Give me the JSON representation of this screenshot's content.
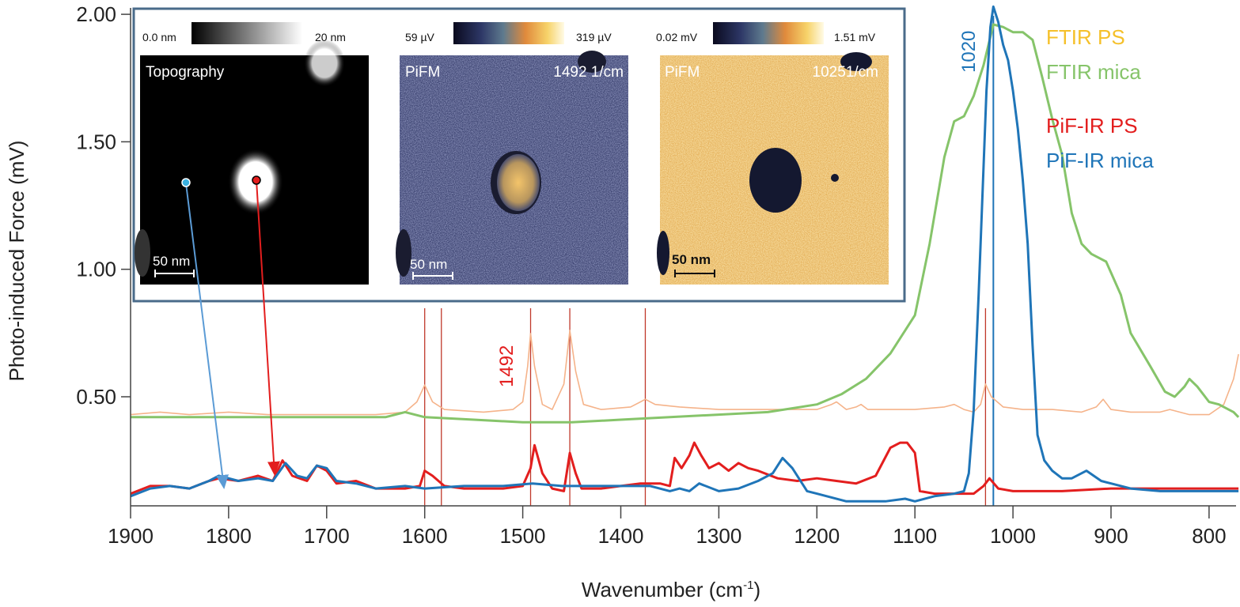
{
  "chart_data": {
    "type": "line",
    "xlabel": "Wavenumber (cm",
    "xlabel_sup": "-1",
    "xlabel_end": ")",
    "ylabel": "Photo-induced Force (mV)",
    "xlim": [
      1900,
      770
    ],
    "ylim": [
      0.07,
      2.03
    ],
    "x_reversed": true,
    "grid": false,
    "xticks": [
      1900,
      1800,
      1700,
      1600,
      1500,
      1400,
      1300,
      1200,
      1100,
      1000,
      900,
      800
    ],
    "yticks": [
      "0.50",
      "1.00",
      "1.50",
      "2.00"
    ],
    "legend_placement": "top-right",
    "series": [
      {
        "name": "FTIR PS",
        "color": "#f5b38a",
        "legend_color": "#f5c02a",
        "x": [
          1900,
          1870,
          1840,
          1800,
          1760,
          1700,
          1650,
          1620,
          1608,
          1600,
          1592,
          1580,
          1540,
          1510,
          1500,
          1495,
          1492,
          1488,
          1480,
          1470,
          1458,
          1452,
          1446,
          1438,
          1420,
          1390,
          1380,
          1375,
          1365,
          1340,
          1300,
          1250,
          1200,
          1185,
          1180,
          1170,
          1160,
          1155,
          1148,
          1100,
          1070,
          1060,
          1050,
          1040,
          1033,
          1028,
          1022,
          1010,
          990,
          960,
          930,
          915,
          908,
          900,
          880,
          850,
          840,
          820,
          800,
          785,
          775,
          770
        ],
        "y": [
          0.43,
          0.44,
          0.43,
          0.44,
          0.43,
          0.43,
          0.43,
          0.44,
          0.48,
          0.546,
          0.48,
          0.45,
          0.44,
          0.45,
          0.48,
          0.62,
          0.748,
          0.62,
          0.47,
          0.45,
          0.55,
          0.76,
          0.6,
          0.47,
          0.45,
          0.46,
          0.48,
          0.49,
          0.47,
          0.46,
          0.45,
          0.45,
          0.45,
          0.47,
          0.48,
          0.45,
          0.46,
          0.47,
          0.45,
          0.45,
          0.46,
          0.47,
          0.45,
          0.44,
          0.47,
          0.55,
          0.5,
          0.46,
          0.45,
          0.45,
          0.44,
          0.46,
          0.49,
          0.45,
          0.44,
          0.44,
          0.45,
          0.43,
          0.43,
          0.47,
          0.57,
          0.667
        ]
      },
      {
        "name": "FTIR mica",
        "color": "#86c46a",
        "x": [
          1900,
          1800,
          1700,
          1640,
          1620,
          1600,
          1550,
          1500,
          1450,
          1400,
          1350,
          1300,
          1250,
          1200,
          1175,
          1150,
          1125,
          1100,
          1085,
          1070,
          1060,
          1050,
          1040,
          1030,
          1020,
          1010,
          1000,
          990,
          980,
          970,
          960,
          950,
          940,
          930,
          920,
          905,
          890,
          880,
          860,
          845,
          835,
          825,
          820,
          812,
          800,
          790,
          775,
          770
        ],
        "y": [
          0.42,
          0.42,
          0.42,
          0.42,
          0.44,
          0.42,
          0.41,
          0.4,
          0.4,
          0.41,
          0.42,
          0.43,
          0.44,
          0.47,
          0.51,
          0.57,
          0.67,
          0.82,
          1.1,
          1.44,
          1.58,
          1.6,
          1.68,
          1.8,
          1.96,
          1.95,
          1.93,
          1.93,
          1.9,
          1.75,
          1.59,
          1.45,
          1.22,
          1.1,
          1.06,
          1.03,
          0.9,
          0.75,
          0.62,
          0.52,
          0.5,
          0.54,
          0.57,
          0.54,
          0.48,
          0.47,
          0.44,
          0.42
        ]
      },
      {
        "name": "PiF-IR PS",
        "color": "#e31e1e",
        "x": [
          1900,
          1880,
          1860,
          1840,
          1820,
          1810,
          1790,
          1770,
          1755,
          1745,
          1735,
          1720,
          1710,
          1700,
          1690,
          1670,
          1650,
          1620,
          1605,
          1600,
          1592,
          1580,
          1560,
          1520,
          1500,
          1492,
          1488,
          1480,
          1470,
          1458,
          1452,
          1446,
          1440,
          1420,
          1400,
          1380,
          1360,
          1350,
          1345,
          1338,
          1330,
          1325,
          1318,
          1310,
          1300,
          1290,
          1280,
          1270,
          1260,
          1240,
          1220,
          1200,
          1180,
          1160,
          1140,
          1125,
          1115,
          1108,
          1100,
          1095,
          1080,
          1060,
          1040,
          1030,
          1024,
          1015,
          1000,
          950,
          900,
          850,
          800,
          770
        ],
        "y": [
          0.12,
          0.15,
          0.15,
          0.14,
          0.17,
          0.18,
          0.17,
          0.19,
          0.17,
          0.25,
          0.19,
          0.17,
          0.23,
          0.21,
          0.16,
          0.17,
          0.14,
          0.14,
          0.15,
          0.21,
          0.19,
          0.15,
          0.14,
          0.14,
          0.15,
          0.22,
          0.31,
          0.2,
          0.14,
          0.13,
          0.28,
          0.2,
          0.14,
          0.14,
          0.15,
          0.16,
          0.16,
          0.15,
          0.26,
          0.22,
          0.27,
          0.32,
          0.27,
          0.22,
          0.24,
          0.21,
          0.24,
          0.22,
          0.21,
          0.18,
          0.17,
          0.18,
          0.17,
          0.16,
          0.19,
          0.3,
          0.32,
          0.32,
          0.28,
          0.13,
          0.12,
          0.12,
          0.12,
          0.15,
          0.18,
          0.14,
          0.13,
          0.13,
          0.14,
          0.14,
          0.14,
          0.14
        ]
      },
      {
        "name": "PiF-IR mica",
        "color": "#1f75b8",
        "x": [
          1900,
          1880,
          1860,
          1840,
          1820,
          1810,
          1790,
          1770,
          1755,
          1742,
          1730,
          1720,
          1710,
          1700,
          1690,
          1670,
          1650,
          1620,
          1600,
          1560,
          1520,
          1490,
          1460,
          1420,
          1400,
          1370,
          1350,
          1340,
          1330,
          1320,
          1300,
          1280,
          1260,
          1245,
          1235,
          1225,
          1210,
          1200,
          1170,
          1130,
          1110,
          1100,
          1080,
          1060,
          1050,
          1045,
          1040,
          1035,
          1030,
          1027,
          1023,
          1020,
          1015,
          1010,
          1005,
          1000,
          995,
          990,
          985,
          980,
          975,
          968,
          960,
          950,
          940,
          925,
          910,
          900,
          880,
          850,
          820,
          800,
          770
        ],
        "y": [
          0.11,
          0.14,
          0.15,
          0.14,
          0.17,
          0.19,
          0.17,
          0.18,
          0.17,
          0.24,
          0.19,
          0.18,
          0.23,
          0.22,
          0.17,
          0.16,
          0.14,
          0.15,
          0.14,
          0.15,
          0.15,
          0.16,
          0.15,
          0.15,
          0.15,
          0.15,
          0.13,
          0.14,
          0.13,
          0.16,
          0.13,
          0.14,
          0.17,
          0.2,
          0.26,
          0.22,
          0.13,
          0.12,
          0.09,
          0.09,
          0.1,
          0.09,
          0.11,
          0.12,
          0.13,
          0.2,
          0.45,
          0.9,
          1.4,
          1.7,
          1.95,
          2.03,
          1.97,
          1.88,
          1.82,
          1.7,
          1.55,
          1.35,
          1.1,
          0.7,
          0.35,
          0.25,
          0.21,
          0.18,
          0.18,
          0.21,
          0.17,
          0.16,
          0.14,
          0.13,
          0.13,
          0.13,
          0.13
        ]
      }
    ],
    "reference_lines": [
      {
        "x": 1600,
        "color": "#c0392b"
      },
      {
        "x": 1583,
        "color": "#c0392b"
      },
      {
        "x": 1492,
        "color": "#c0392b"
      },
      {
        "x": 1452,
        "color": "#c0392b"
      },
      {
        "x": 1375,
        "color": "#c0392b"
      },
      {
        "x": 1028,
        "color": "#c0392b"
      },
      {
        "x": 1020,
        "color": "#1f75b8"
      }
    ],
    "annotations": [
      {
        "text": "1492",
        "color": "#e31e1e"
      },
      {
        "text": "1020",
        "color": "#1f75b8"
      }
    ]
  },
  "inset": {
    "border_color": "#4a6b8a",
    "panels": [
      {
        "title": "Topography",
        "scale_min": "0.0 nm",
        "scale_max": "20 nm",
        "scalebar": "50 nm",
        "wavenumber": ""
      },
      {
        "title": "PiFM",
        "scale_min": "59 µV",
        "scale_max": "319 µV",
        "scalebar": "50 nm",
        "wavenumber": "1492 1/cm"
      },
      {
        "title": "PiFM",
        "scale_min": "0.02 mV",
        "scale_max": "1.51 mV",
        "scalebar": "50 nm",
        "wavenumber": "10251/cm"
      }
    ]
  }
}
